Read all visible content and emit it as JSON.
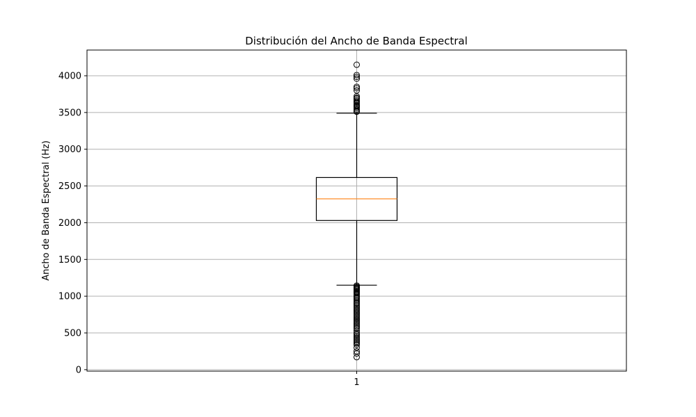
{
  "chart_data": {
    "type": "boxplot",
    "title": "Distribución del Ancho de Banda Espectral",
    "xlabel": "",
    "ylabel": "Ancho de Banda Espectral (Hz)",
    "categories": [
      "1"
    ],
    "ylim": [
      -20,
      4350
    ],
    "yticks": [
      0,
      500,
      1000,
      1500,
      2000,
      2500,
      3000,
      3500,
      4000
    ],
    "grid": true,
    "box": {
      "q1": 2030,
      "median": 2325,
      "q3": 2615,
      "whisker_low": 1150,
      "whisker_high": 3490
    },
    "outliers": [
      4150,
      4010,
      3985,
      3960,
      3850,
      3830,
      3800,
      3720,
      3700,
      3690,
      3670,
      3650,
      3640,
      3620,
      3600,
      3590,
      3580,
      3560,
      3540,
      3520,
      3510,
      1145,
      1130,
      1120,
      1110,
      1100,
      1090,
      1075,
      1060,
      1050,
      1040,
      1020,
      1000,
      985,
      970,
      950,
      930,
      910,
      900,
      880,
      860,
      840,
      820,
      800,
      780,
      760,
      740,
      720,
      700,
      680,
      660,
      640,
      620,
      600,
      580,
      560,
      530,
      500,
      480,
      460,
      440,
      420,
      400,
      380,
      360,
      340,
      300,
      250,
      220,
      170
    ],
    "colors": {
      "box": "#000000",
      "median": "#ff7f0e",
      "grid": "#b0b0b0"
    }
  }
}
